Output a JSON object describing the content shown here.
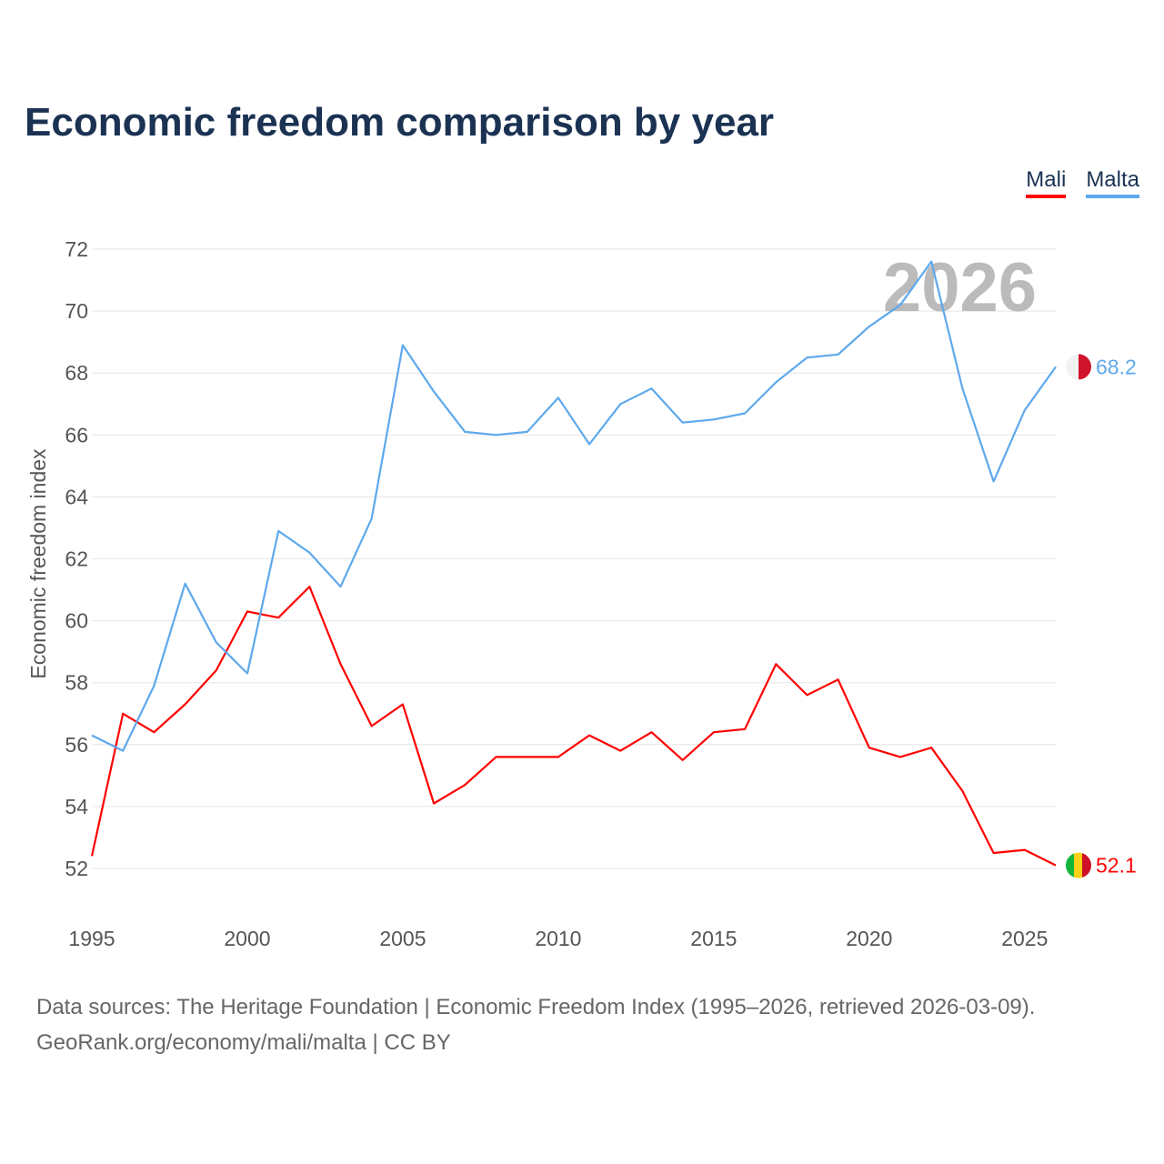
{
  "title": "Economic freedom comparison by year",
  "legend": [
    {
      "label": "Mali",
      "color": "#ff0000"
    },
    {
      "label": "Malta",
      "color": "#5ea8ec"
    }
  ],
  "watermark_year": "2026",
  "source_line1": "Data sources: The Heritage Foundation | Economic Freedom Index (1995–2026, retrieved 2026-03-09).",
  "source_line2": "GeoRank.org/economy/mali/malta | CC BY",
  "chart_data": {
    "type": "line",
    "title": "Economic freedom comparison by year",
    "xlabel": "",
    "ylabel": "Economic freedom index",
    "xlim": [
      1995,
      2026
    ],
    "ylim": [
      52,
      72
    ],
    "yticks": [
      52,
      54,
      56,
      58,
      60,
      62,
      64,
      66,
      68,
      70,
      72
    ],
    "xticks": [
      1995,
      2000,
      2005,
      2010,
      2015,
      2020,
      2025
    ],
    "grid": true,
    "legend_position": "top-right",
    "x": [
      1995,
      1996,
      1997,
      1998,
      1999,
      2000,
      2001,
      2002,
      2003,
      2004,
      2005,
      2006,
      2007,
      2008,
      2009,
      2010,
      2011,
      2012,
      2013,
      2014,
      2015,
      2016,
      2017,
      2018,
      2019,
      2020,
      2021,
      2022,
      2023,
      2024,
      2025,
      2026
    ],
    "series": [
      {
        "name": "Mali",
        "color": "#ff0000",
        "end_label": "52.1",
        "values": [
          52.4,
          57.0,
          56.4,
          57.3,
          58.4,
          60.3,
          60.1,
          61.1,
          58.6,
          56.6,
          57.3,
          54.1,
          54.7,
          55.6,
          55.6,
          55.6,
          56.3,
          55.8,
          56.4,
          55.5,
          56.4,
          56.5,
          58.6,
          57.6,
          58.1,
          55.9,
          55.6,
          55.9,
          54.5,
          52.5,
          52.6,
          52.1
        ]
      },
      {
        "name": "Malta",
        "color": "#5ea8ec",
        "end_label": "68.2",
        "values": [
          56.3,
          55.8,
          57.9,
          61.2,
          59.3,
          58.3,
          62.9,
          62.2,
          61.1,
          63.3,
          68.9,
          67.4,
          66.1,
          66.0,
          66.1,
          67.2,
          65.7,
          67.0,
          67.5,
          66.4,
          66.5,
          66.7,
          67.7,
          68.5,
          68.6,
          69.5,
          70.2,
          71.6,
          67.5,
          64.5,
          66.8,
          68.2
        ]
      }
    ]
  }
}
